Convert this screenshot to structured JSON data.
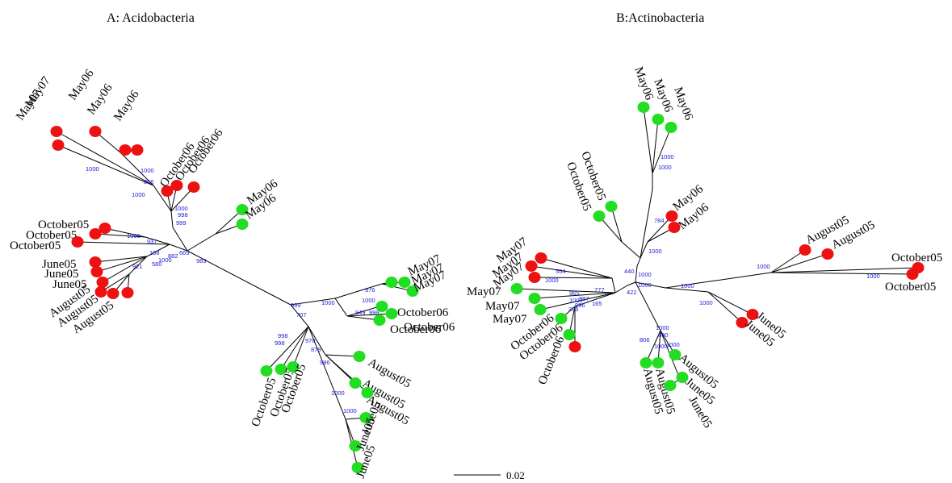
{
  "colors": {
    "red": "#ee1111",
    "green": "#22dd22",
    "branch": "#000000",
    "bootstrap": "#1a1ad6"
  },
  "panels": {
    "a": {
      "title": "A:  Acidobacteria",
      "leaves": [
        {
          "label": "May07",
          "color": "red"
        },
        {
          "label": "May07",
          "color": "red"
        },
        {
          "label": "May06",
          "color": "red"
        },
        {
          "label": "May06",
          "color": "red"
        },
        {
          "label": "May06",
          "color": "red"
        },
        {
          "label": "October06",
          "color": "red"
        },
        {
          "label": "October06",
          "color": "red"
        },
        {
          "label": "October06",
          "color": "red"
        },
        {
          "label": "May06",
          "color": "green"
        },
        {
          "label": "May06",
          "color": "green"
        },
        {
          "label": "October05",
          "color": "red"
        },
        {
          "label": "October05",
          "color": "red"
        },
        {
          "label": "October05",
          "color": "red"
        },
        {
          "label": "June05",
          "color": "red"
        },
        {
          "label": "June05",
          "color": "red"
        },
        {
          "label": "June05",
          "color": "red"
        },
        {
          "label": "August05",
          "color": "red"
        },
        {
          "label": "August05",
          "color": "red"
        },
        {
          "label": "August05",
          "color": "red"
        },
        {
          "label": "May07",
          "color": "green"
        },
        {
          "label": "May07",
          "color": "green"
        },
        {
          "label": "May07",
          "color": "green"
        },
        {
          "label": "October06",
          "color": "green"
        },
        {
          "label": "October06",
          "color": "green"
        },
        {
          "label": "October06",
          "color": "green"
        },
        {
          "label": "October05",
          "color": "green"
        },
        {
          "label": "October05",
          "color": "green"
        },
        {
          "label": "October05",
          "color": "green"
        },
        {
          "label": "August05",
          "color": "green"
        },
        {
          "label": "August05",
          "color": "green"
        },
        {
          "label": "August05",
          "color": "green"
        },
        {
          "label": "June05",
          "color": "green"
        },
        {
          "label": "June05",
          "color": "green"
        },
        {
          "label": "June05",
          "color": "green"
        }
      ],
      "bootstraps": [
        "1000",
        "866",
        "1000",
        "1000",
        "998",
        "999",
        "1000",
        "1000",
        "937",
        "168",
        "882",
        "669",
        "921",
        "1000",
        "580",
        "983",
        "976",
        "1000",
        "1000",
        "949",
        "999",
        "999",
        "707",
        "998",
        "998",
        "970",
        "879",
        "996",
        "1000",
        "1000"
      ]
    },
    "b": {
      "title": "B:Actinobacteria",
      "leaves": [
        {
          "label": "May06",
          "color": "green"
        },
        {
          "label": "May06",
          "color": "green"
        },
        {
          "label": "May06",
          "color": "green"
        },
        {
          "label": "October05",
          "color": "green"
        },
        {
          "label": "October05",
          "color": "green"
        },
        {
          "label": "May06",
          "color": "red"
        },
        {
          "label": "May06",
          "color": "red"
        },
        {
          "label": "August05",
          "color": "red"
        },
        {
          "label": "August05",
          "color": "red"
        },
        {
          "label": "October05",
          "color": "red"
        },
        {
          "label": "October05",
          "color": "red"
        },
        {
          "label": "May07",
          "color": "red"
        },
        {
          "label": "May07",
          "color": "red"
        },
        {
          "label": "May07",
          "color": "red"
        },
        {
          "label": "May07",
          "color": "green"
        },
        {
          "label": "May07",
          "color": "green"
        },
        {
          "label": "May07",
          "color": "green"
        },
        {
          "label": "October06",
          "color": "green"
        },
        {
          "label": "October06",
          "color": "green"
        },
        {
          "label": "October06",
          "color": "red"
        },
        {
          "label": "June05",
          "color": "red"
        },
        {
          "label": "June05",
          "color": "red"
        },
        {
          "label": "August05",
          "color": "green"
        },
        {
          "label": "August05",
          "color": "green"
        },
        {
          "label": "August05",
          "color": "green"
        },
        {
          "label": "June05",
          "color": "green"
        },
        {
          "label": "June05",
          "color": "green"
        }
      ],
      "bootstraps": [
        "1000",
        "1000",
        "784",
        "1000",
        "554",
        "1000",
        "440",
        "1000",
        "1000",
        "965",
        "1000",
        "997",
        "777",
        "996",
        "165",
        "395",
        "422",
        "1000",
        "1000",
        "1000",
        "1000",
        "1000",
        "806",
        "990",
        "1000",
        "1000"
      ]
    }
  },
  "scale_bar": {
    "label": "0.02",
    "value": 0.02
  }
}
